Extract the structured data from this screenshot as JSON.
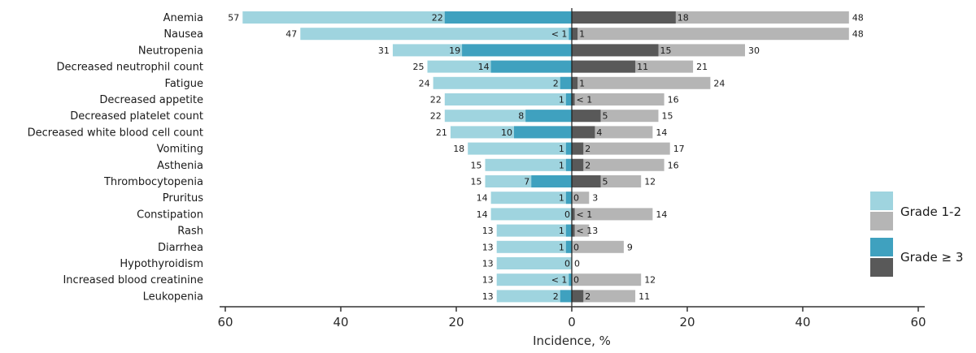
{
  "chart_data": {
    "type": "bar",
    "orientation": "horizontal-diverging",
    "xlabel": "Incidence, %",
    "xlim": [
      -60,
      60
    ],
    "x_ticks": [
      -60,
      -40,
      -20,
      0,
      20,
      40,
      60
    ],
    "x_tick_labels": [
      "60",
      "40",
      "20",
      "0",
      "20",
      "40",
      "60"
    ],
    "categories": [
      "Anemia",
      "Nausea",
      "Neutropenia",
      "Decreased neutrophil count",
      "Fatigue",
      "Decreased appetite",
      "Decreased platelet count",
      "Decreased white blood cell count",
      "Vomiting",
      "Asthenia",
      "Thrombocytopenia",
      "Pruritus",
      "Constipation",
      "Rash",
      "Diarrhea",
      "Hypothyroidism",
      "Increased blood creatinine",
      "Leukopenia"
    ],
    "left": {
      "any_grade": [
        57,
        47,
        31,
        25,
        24,
        22,
        22,
        21,
        18,
        15,
        15,
        14,
        14,
        13,
        13,
        13,
        13,
        13
      ],
      "any_grade_labels": [
        "57",
        "47",
        "31",
        "25",
        "24",
        "22",
        "22",
        "21",
        "18",
        "15",
        "15",
        "14",
        "14",
        "13",
        "13",
        "13",
        "13",
        "13"
      ],
      "grade3": [
        22,
        0.5,
        19,
        14,
        2,
        1,
        8,
        10,
        1,
        1,
        7,
        1,
        0,
        1,
        1,
        0,
        0.5,
        2
      ],
      "grade3_labels": [
        "22",
        "< 1",
        "19",
        "14",
        "2",
        "1",
        "8",
        "10",
        "1",
        "1",
        "7",
        "1",
        "0",
        "1",
        "1",
        "0",
        "< 1",
        "2"
      ]
    },
    "right": {
      "any_grade": [
        48,
        48,
        30,
        21,
        24,
        16,
        15,
        14,
        17,
        16,
        12,
        3,
        14,
        3,
        9,
        0,
        12,
        11
      ],
      "any_grade_labels": [
        "48",
        "48",
        "30",
        "21",
        "24",
        "16",
        "15",
        "14",
        "17",
        "16",
        "12",
        "3",
        "14",
        "3",
        "9",
        "0",
        "12",
        "11"
      ],
      "grade3": [
        18,
        1,
        15,
        11,
        1,
        0.5,
        5,
        4,
        2,
        2,
        5,
        0,
        0.5,
        0.5,
        0,
        0,
        0,
        2
      ],
      "grade3_labels": [
        "18",
        "1",
        "15",
        "11",
        "1",
        "< 1",
        "5",
        "4",
        "2",
        "2",
        "5",
        "0",
        "< 1",
        "< 1",
        "0",
        "",
        "0",
        "2"
      ]
    },
    "legend": {
      "position": "right",
      "items": [
        {
          "label": "Grade 1-2",
          "colors": [
            "#9fd4df",
            "#b5b5b5"
          ]
        },
        {
          "label": "Grade ≥ 3",
          "colors": [
            "#3fa1bf",
            "#595959"
          ]
        }
      ]
    },
    "colors": {
      "left_grade12": "#9fd4df",
      "left_grade3": "#3fa1bf",
      "right_grade12": "#b5b5b5",
      "right_grade3": "#595959",
      "center_line": "#1a1a1a",
      "axis": "#333333"
    }
  }
}
